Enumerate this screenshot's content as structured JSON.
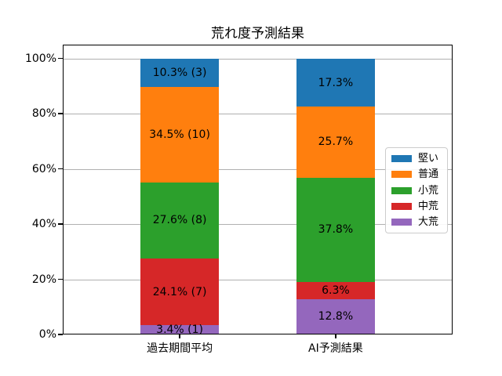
{
  "chart_data": {
    "type": "bar",
    "stacked": true,
    "title": "荒れ度予測結果",
    "categories": [
      "過去期間平均",
      "AI予測結果"
    ],
    "series": [
      {
        "name": "堅い",
        "color": "#1f77b4",
        "values": [
          10.3,
          17.3
        ],
        "labels": [
          "10.3% (3)",
          "17.3%"
        ]
      },
      {
        "name": "普通",
        "color": "#ff7f0e",
        "values": [
          34.5,
          25.7
        ],
        "labels": [
          "34.5% (10)",
          "25.7%"
        ]
      },
      {
        "name": "小荒",
        "color": "#2ca02c",
        "values": [
          27.6,
          37.8
        ],
        "labels": [
          "27.6% (8)",
          "37.8%"
        ]
      },
      {
        "name": "中荒",
        "color": "#d62728",
        "values": [
          24.1,
          6.3
        ],
        "labels": [
          "24.1% (7)",
          "6.3%"
        ]
      },
      {
        "name": "大荒",
        "color": "#9467bd",
        "values": [
          3.4,
          12.8
        ],
        "labels": [
          "3.4% (1)",
          "12.8%"
        ]
      }
    ],
    "stack_order_bottom_to_top": [
      "大荒",
      "中荒",
      "小荒",
      "普通",
      "堅い"
    ],
    "y_ticks": [
      0,
      20,
      40,
      60,
      80,
      100
    ],
    "y_tick_labels": [
      "0%",
      "20%",
      "40%",
      "60%",
      "80%",
      "100%"
    ],
    "ylim": [
      0,
      105
    ],
    "xlim": [
      -0.75,
      1.75
    ],
    "bar_width_units": 0.5,
    "grid": true,
    "grid_color": "#b0b0b0",
    "legend_position": "center right",
    "legend_entries": [
      "堅い",
      "普通",
      "小荒",
      "中荒",
      "大荒"
    ]
  }
}
